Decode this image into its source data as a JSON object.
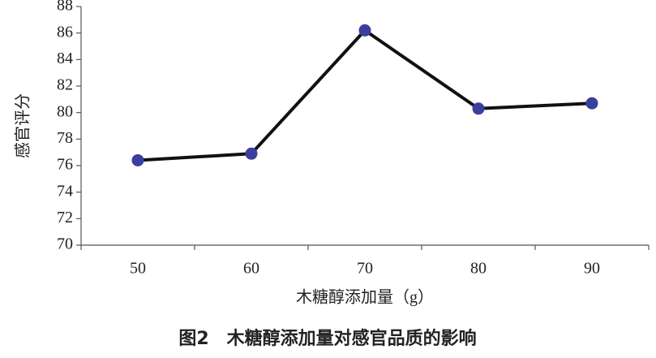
{
  "chart_data": {
    "type": "line",
    "title": "图2　木糖醇添加量对感官品质的影响",
    "x_label": "木糖醇添加量（g）",
    "y_label": "感官评分",
    "categories": [
      "50",
      "60",
      "70",
      "80",
      "90"
    ],
    "series": [
      {
        "color": "#3a3f9e",
        "values": [
          76.4,
          76.9,
          86.2,
          80.3,
          80.7
        ]
      }
    ],
    "ylim": [
      70,
      88
    ],
    "yticks": [
      70,
      72,
      74,
      76,
      78,
      80,
      82,
      84,
      86,
      88
    ]
  }
}
